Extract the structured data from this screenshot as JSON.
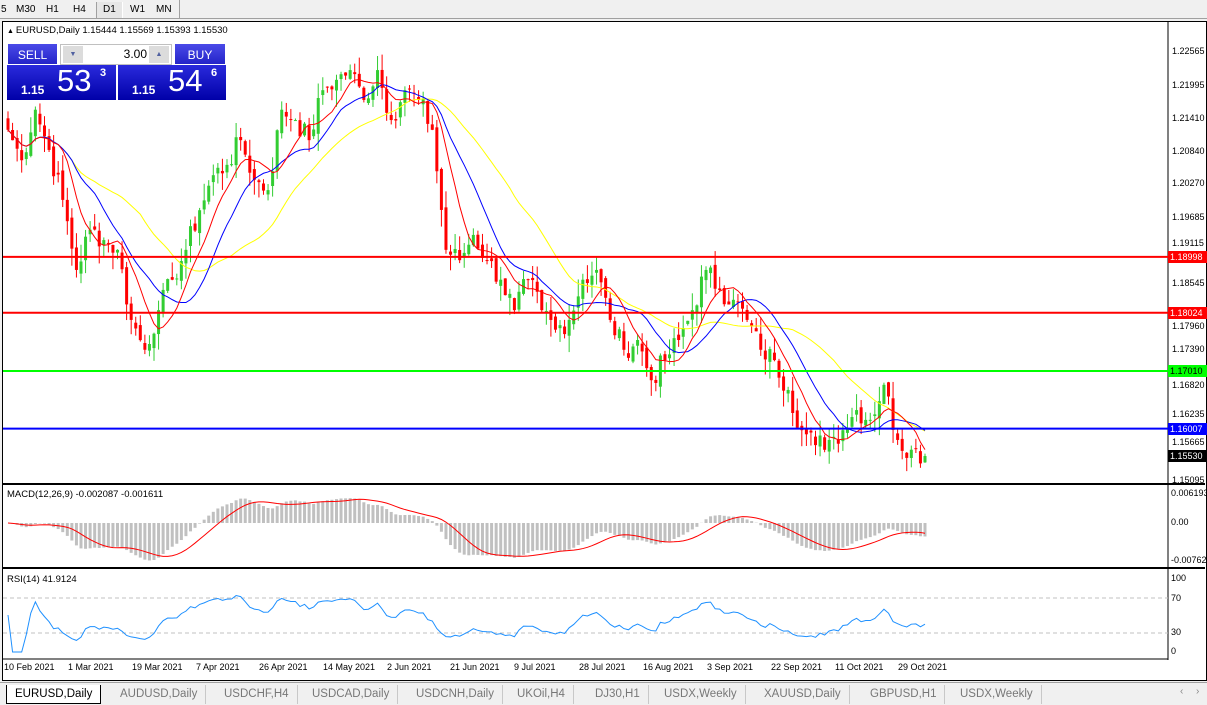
{
  "toolbar": {
    "timeframes": [
      "5",
      "M30",
      "H1",
      "H4",
      "D1",
      "W1",
      "MN"
    ],
    "active": "D1"
  },
  "chart": {
    "symbol_line": "EURUSD,Daily  1.15444 1.15569 1.15393 1.15530",
    "symbol": "EURUSD",
    "timeframe": "Daily",
    "ohlc": {
      "open": "1.15444",
      "high": "1.15569",
      "low": "1.15393",
      "close": "1.15530"
    },
    "one_click": {
      "sell_label": "SELL",
      "buy_label": "BUY",
      "lot": "3.00",
      "sell": {
        "prefix": "1.15",
        "big": "53",
        "sup": "3"
      },
      "buy": {
        "prefix": "1.15",
        "big": "54",
        "sup": "6"
      }
    },
    "price_axis": [
      "1.22565",
      "1.21995",
      "1.21410",
      "1.20840",
      "1.20270",
      "1.19685",
      "1.19115",
      "1.18545",
      "1.17960",
      "1.17390",
      "1.16820",
      "1.16235",
      "1.15665",
      "1.15095"
    ],
    "levels": [
      {
        "price": "1.18998",
        "color": "#ff0000"
      },
      {
        "price": "1.18024",
        "color": "#ff0000"
      },
      {
        "price": "1.17010",
        "color": "#00ff00"
      },
      {
        "price": "1.16007",
        "color": "#0000ff"
      }
    ],
    "current_price": "1.15530",
    "closes": [
      1.2121,
      1.2068,
      1.2156,
      1.2086,
      1.1999,
      1.1877,
      1.1947,
      1.1929,
      1.1912,
      1.179,
      1.1738,
      1.1807,
      1.186,
      1.1912,
      1.1981,
      1.2042,
      1.206,
      1.2103,
      1.2034,
      1.2016,
      1.2156,
      1.2138,
      1.2103,
      1.219,
      1.2208,
      1.2225,
      1.2173,
      1.2225,
      1.2138,
      1.219,
      1.2173,
      1.2121,
      1.1912,
      1.1894,
      1.1938,
      1.1894,
      1.186,
      1.1807,
      1.186,
      1.1807,
      1.1773,
      1.179,
      1.186,
      1.1877,
      1.179,
      1.1738,
      1.1755,
      1.1685,
      1.172,
      1.1755,
      1.1807,
      1.1877,
      1.1842,
      1.1825,
      1.179,
      1.1738,
      1.172,
      1.1668,
      1.1598,
      1.1572,
      1.1581,
      1.1598,
      1.1633,
      1.1616,
      1.1677,
      1.1581,
      1.1564,
      1.1553
    ],
    "colors": {
      "bull": "#32cd32",
      "bear": "#ff0000",
      "ma_fast": "#ff0000",
      "ma_mid": "#0000ff",
      "ma_slow": "#ffff00"
    },
    "dates": [
      "10 Feb 2021",
      "1 Mar 2021",
      "19 Mar 2021",
      "7 Apr 2021",
      "26 Apr 2021",
      "14 May 2021",
      "2 Jun 2021",
      "21 Jun 2021",
      "9 Jul 2021",
      "28 Jul 2021",
      "16 Aug 2021",
      "3 Sep 2021",
      "22 Sep 2021",
      "11 Oct 2021",
      "29 Oct 2021"
    ]
  },
  "macd": {
    "label": "MACD(12,26,9) -0.002087 -0.001611",
    "axis": [
      "0.006193",
      "0.00",
      "-0.00762"
    ]
  },
  "rsi": {
    "label": "RSI(14) 41.9124",
    "axis": [
      "100",
      "70",
      "30",
      "0"
    ]
  },
  "tabs": [
    "EURUSD,Daily",
    "AUDUSD,Daily",
    "USDCHF,H4",
    "USDCAD,Daily",
    "USDCNH,Daily",
    "UKOil,H4",
    "DJ30,H1",
    "USDX,Weekly",
    "XAUUSD,Daily",
    "GBPUSD,H1",
    "USDX,Weekly"
  ],
  "active_tab": "EURUSD,Daily"
}
